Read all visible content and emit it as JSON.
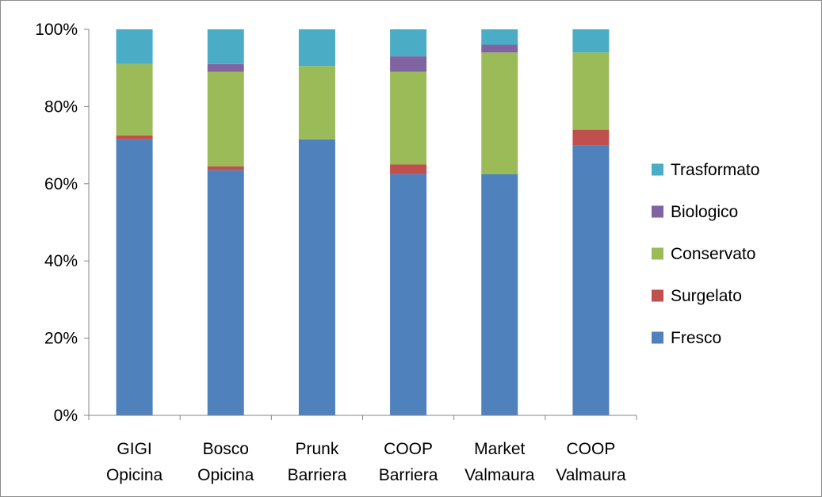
{
  "chart_data": {
    "type": "bar",
    "stacked": true,
    "percent": true,
    "categories": [
      [
        "GIGI",
        "Opicina"
      ],
      [
        "Bosco",
        "Opicina"
      ],
      [
        "Prunk",
        "Barriera"
      ],
      [
        "COOP",
        "Barriera"
      ],
      [
        "Market",
        "Valmaura"
      ],
      [
        "COOP",
        "Valmaura"
      ]
    ],
    "series": [
      {
        "name": "Fresco",
        "color": "#4f81bd",
        "values": [
          71.5,
          63.5,
          71.5,
          62.5,
          62.5,
          70.0
        ]
      },
      {
        "name": "Surgelato",
        "color": "#c0504d",
        "values": [
          1.0,
          1.0,
          0.0,
          2.5,
          0.0,
          4.0
        ]
      },
      {
        "name": "Conservato",
        "color": "#9bbb59",
        "values": [
          18.5,
          24.5,
          19.0,
          24.0,
          31.5,
          20.0
        ]
      },
      {
        "name": "Biologico",
        "color": "#8064a2",
        "values": [
          0.0,
          2.0,
          0.0,
          4.0,
          2.0,
          0.0
        ]
      },
      {
        "name": "Trasformato",
        "color": "#4bacc6",
        "values": [
          9.0,
          9.0,
          9.5,
          7.0,
          4.0,
          6.0
        ]
      }
    ],
    "ylim": [
      0,
      100
    ],
    "yticks": [
      "0%",
      "20%",
      "40%",
      "60%",
      "80%",
      "100%"
    ],
    "legend_order": [
      "Trasformato",
      "Biologico",
      "Conservato",
      "Surgelato",
      "Fresco"
    ],
    "legend_position": "right",
    "grid": false,
    "axis_color": "#868686"
  }
}
